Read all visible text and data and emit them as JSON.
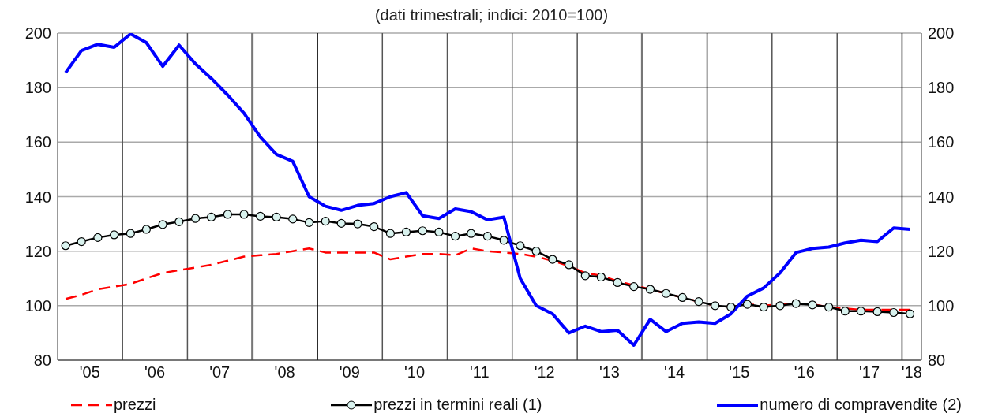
{
  "chart_data": {
    "type": "line",
    "subtitle": "(dati trimestrali; indici: 2010=100)",
    "x": [
      "2005-02-15",
      "2005-05-15",
      "2005-08-15",
      "2005-11-15",
      "2006-02-15",
      "2006-05-15",
      "2006-08-15",
      "2006-11-15",
      "2007-02-15",
      "2007-05-15",
      "2007-08-15",
      "2007-11-15",
      "2008-02-15",
      "2008-05-15",
      "2008-08-15",
      "2008-11-15",
      "2009-02-15",
      "2009-05-15",
      "2009-08-15",
      "2009-11-15",
      "2010-02-15",
      "2010-05-15",
      "2010-08-15",
      "2010-11-15",
      "2011-02-15",
      "2011-05-15",
      "2011-08-15",
      "2011-11-15",
      "2012-02-15",
      "2012-05-15",
      "2012-08-15",
      "2012-11-15",
      "2013-02-15",
      "2013-05-15",
      "2013-08-15",
      "2013-11-15",
      "2014-02-15",
      "2014-05-15",
      "2014-08-15",
      "2014-11-15",
      "2015-02-15",
      "2015-05-15",
      "2015-08-15",
      "2015-11-15",
      "2016-02-15",
      "2016-05-15",
      "2016-08-15",
      "2016-11-15",
      "2017-02-15",
      "2017-05-15",
      "2017-08-15",
      "2017-11-15",
      "2018-02-15"
    ],
    "series": [
      {
        "name": "prezzi",
        "color": "#ff0000",
        "line_style": "dashed",
        "marker": "none",
        "values": [
          102.5,
          104,
          106,
          107,
          108,
          110,
          112,
          113,
          114,
          115,
          116.5,
          118,
          118.5,
          119,
          120,
          121,
          119.5,
          119.5,
          119.5,
          119.5,
          117,
          118,
          119,
          119,
          118.5,
          121,
          120,
          119.5,
          119,
          118,
          116.5,
          114.5,
          112,
          111,
          109,
          107.5,
          106,
          104.5,
          103,
          101.5,
          100,
          99.5,
          100.5,
          100,
          100.5,
          100.8,
          100.5,
          99.5,
          99,
          98.5,
          98.5,
          98.5,
          98.5
        ]
      },
      {
        "name": "prezzi in termini reali (1)",
        "color": "#000000",
        "line_style": "solid",
        "marker": "circle",
        "values": [
          122,
          123.5,
          125,
          126,
          126.5,
          128,
          129.8,
          130.8,
          132,
          132.5,
          133.5,
          133.5,
          132.8,
          132.5,
          131.8,
          130.5,
          131,
          130.2,
          130,
          129,
          126.5,
          127,
          127.5,
          127,
          125.5,
          126.5,
          125.5,
          124,
          122,
          120,
          117,
          115,
          111,
          110.5,
          108.5,
          107,
          106,
          104.5,
          103,
          101.5,
          100,
          99.5,
          100.5,
          99.5,
          100,
          100.8,
          100.3,
          99.5,
          98,
          98,
          97.8,
          97.5,
          97
        ]
      },
      {
        "name": "numero di compravendite (2)",
        "color": "#0000ff",
        "line_style": "solid",
        "marker": "none",
        "axis": "y2",
        "values": [
          185.5,
          193.6,
          195.9,
          194.8,
          199.7,
          196.5,
          187.8,
          195.6,
          188.7,
          183.4,
          177.3,
          170.6,
          161.9,
          155.5,
          153,
          140,
          136.5,
          135,
          136.8,
          137.5,
          140,
          141.5,
          133,
          132,
          135.5,
          134.5,
          131.5,
          132.5,
          110,
          100,
          97,
          90,
          92.5,
          90.5,
          91,
          85.5,
          95,
          90.5,
          93.5,
          94,
          93.5,
          97,
          103.5,
          106.5,
          112,
          119.5,
          121,
          121.5,
          123,
          124,
          123.5,
          128.5,
          128
        ]
      }
    ],
    "xlim": [
      "2005-01-01",
      "2018-04-20"
    ],
    "xticks": [
      {
        "value": "2005-07-01",
        "label": "'05"
      },
      {
        "value": "2006-07-01",
        "label": "'06"
      },
      {
        "value": "2007-07-01",
        "label": "'07"
      },
      {
        "value": "2008-07-01",
        "label": "'08"
      },
      {
        "value": "2009-07-01",
        "label": "'09"
      },
      {
        "value": "2010-07-01",
        "label": "'10"
      },
      {
        "value": "2011-07-01",
        "label": "'11"
      },
      {
        "value": "2012-07-01",
        "label": "'12"
      },
      {
        "value": "2013-07-01",
        "label": "'13"
      },
      {
        "value": "2014-07-01",
        "label": "'14"
      },
      {
        "value": "2015-07-01",
        "label": "'15"
      },
      {
        "value": "2016-07-01",
        "label": "'16"
      },
      {
        "value": "2017-07-01",
        "label": "'17"
      },
      {
        "value": "2018-02-25",
        "label": "'18"
      }
    ],
    "ylim": [
      80,
      200
    ],
    "yticks": [
      80,
      100,
      120,
      140,
      160,
      180,
      200
    ],
    "y2lim": [
      80,
      200
    ],
    "y2ticks": [
      80,
      100,
      120,
      140,
      160,
      180,
      200
    ],
    "grid": "y",
    "legend": "bottom",
    "ref_lines": [
      {
        "axis": "x",
        "value": "2006-01-01",
        "color": "#555555"
      },
      {
        "axis": "x",
        "value": "2007-01-01",
        "color": "#555555"
      },
      {
        "axis": "x",
        "value": "2008-01-01",
        "color": "#777777"
      },
      {
        "axis": "x",
        "value": "2009-01-01",
        "color": "#000000"
      },
      {
        "axis": "x",
        "value": "2010-01-01",
        "color": "#555555"
      },
      {
        "axis": "x",
        "value": "2011-01-01",
        "color": "#555555"
      },
      {
        "axis": "x",
        "value": "2012-01-01",
        "color": "#555555"
      },
      {
        "axis": "x",
        "value": "2013-01-01",
        "color": "#555555"
      },
      {
        "axis": "x",
        "value": "2014-01-01",
        "color": "#777777"
      },
      {
        "axis": "x",
        "value": "2015-01-01",
        "color": "#000000"
      },
      {
        "axis": "x",
        "value": "2016-01-01",
        "color": "#555555"
      },
      {
        "axis": "x",
        "value": "2017-01-01",
        "color": "#555555"
      },
      {
        "axis": "x",
        "value": "2018-01-01",
        "color": "#000000"
      }
    ]
  }
}
